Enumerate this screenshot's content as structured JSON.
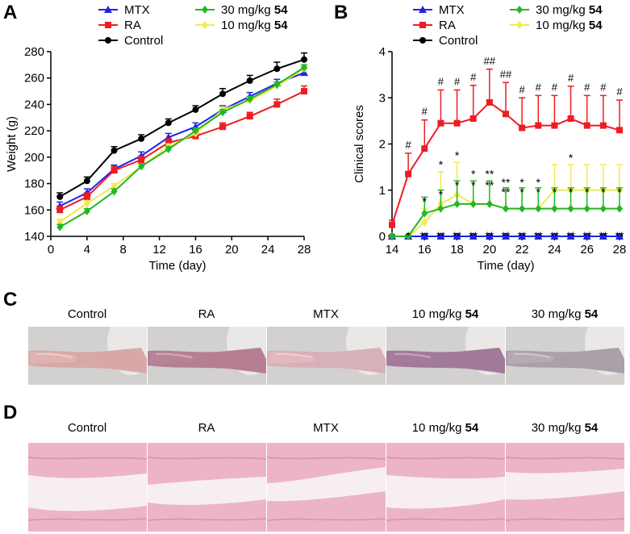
{
  "panels": {
    "A": "A",
    "B": "B",
    "C": "C",
    "D": "D"
  },
  "colors": {
    "mtx": "#1f23e8",
    "ra": "#ee1c24",
    "control": "#000000",
    "d30": "#22b823",
    "d10": "#f2ea52"
  },
  "legend": {
    "mtx": "MTX",
    "ra": "RA",
    "control": "Control",
    "d30": "30 mg/kg",
    "d10": "10 mg/kg",
    "compound": "54"
  },
  "chart_data": [
    {
      "type": "line",
      "title": "",
      "xlabel": "Time (day)",
      "ylabel": "Weight (g)",
      "xlim": [
        0,
        28
      ],
      "ylim": [
        140,
        280
      ],
      "xticks": [
        0,
        4,
        8,
        12,
        16,
        20,
        24,
        28
      ],
      "yticks": [
        140,
        160,
        180,
        200,
        220,
        240,
        260,
        280
      ],
      "x": [
        1,
        4,
        7,
        10,
        13,
        16,
        19,
        22,
        25,
        28
      ],
      "series": [
        {
          "name": "Control",
          "key": "control",
          "marker": "circle",
          "values": [
            170,
            182,
            205,
            214,
            226,
            236,
            248,
            258,
            267,
            274
          ],
          "errors": [
            3,
            3,
            3,
            3,
            3,
            3,
            4,
            4,
            5,
            5
          ]
        },
        {
          "name": "MTX",
          "key": "mtx",
          "marker": "triangle",
          "values": [
            163,
            173,
            191,
            201,
            215,
            223,
            236,
            246,
            256,
            264
          ],
          "errors": [
            3,
            3,
            3,
            3,
            3,
            3,
            3,
            3,
            3,
            3
          ]
        },
        {
          "name": "RA",
          "key": "ra",
          "marker": "square",
          "values": [
            160,
            170,
            190,
            198,
            211,
            216,
            223,
            231,
            240,
            250
          ],
          "errors": [
            3,
            3,
            3,
            3,
            3,
            3,
            3,
            3,
            4,
            4
          ]
        },
        {
          "name": "10 mg/kg 54",
          "key": "d10",
          "marker": "diamond",
          "values": [
            151,
            165,
            178,
            193,
            208,
            218,
            236,
            243,
            254,
            267
          ],
          "errors": [
            2,
            2,
            2,
            2,
            2,
            2,
            2,
            2,
            2,
            2
          ]
        },
        {
          "name": "30 mg/kg 54",
          "key": "d30",
          "marker": "diamond",
          "values": [
            147,
            159,
            174,
            193,
            206,
            220,
            234,
            244,
            255,
            268
          ],
          "errors": [
            2,
            2,
            2,
            2,
            2,
            2,
            2,
            2,
            2,
            2
          ]
        }
      ]
    },
    {
      "type": "line",
      "title": "",
      "xlabel": "Time (day)",
      "ylabel": "Clinical scores",
      "xlim": [
        14,
        28
      ],
      "ylim": [
        0,
        4
      ],
      "xticks": [
        14,
        16,
        18,
        20,
        22,
        24,
        26,
        28
      ],
      "yticks": [
        0,
        1,
        2,
        3,
        4
      ],
      "x": [
        14,
        15,
        16,
        17,
        18,
        19,
        20,
        21,
        22,
        23,
        24,
        25,
        26,
        27,
        28
      ],
      "series": [
        {
          "name": "Control",
          "key": "control",
          "marker": "circle",
          "values": [
            0,
            0,
            0,
            0,
            0,
            0,
            0,
            0,
            0,
            0,
            0,
            0,
            0,
            0,
            0
          ],
          "errors": [
            0,
            0,
            0,
            0,
            0,
            0,
            0,
            0,
            0,
            0,
            0,
            0,
            0,
            0,
            0
          ]
        },
        {
          "name": "MTX",
          "key": "mtx",
          "marker": "triangle",
          "values": [
            0,
            0,
            0,
            0,
            0,
            0,
            0,
            0,
            0,
            0,
            0,
            0,
            0,
            0,
            0
          ],
          "errors": [
            0,
            0,
            0,
            0,
            0,
            0,
            0,
            0,
            0,
            0,
            0,
            0,
            0,
            0,
            0
          ]
        },
        {
          "name": "10 mg/kg 54",
          "key": "d10",
          "marker": "diamond",
          "values": [
            0,
            0,
            0.3,
            0.7,
            0.9,
            0.7,
            0.7,
            0.6,
            0.6,
            0.6,
            1.0,
            1.0,
            1.0,
            1.0,
            1.0
          ],
          "errors": [
            0,
            0,
            0.3,
            0.7,
            0.7,
            0.5,
            0.5,
            0.45,
            0.45,
            0.45,
            0.55,
            0.55,
            0.55,
            0.55,
            0.55
          ]
        },
        {
          "name": "30 mg/kg 54",
          "key": "d30",
          "marker": "diamond",
          "values": [
            0,
            0,
            0.5,
            0.6,
            0.7,
            0.7,
            0.7,
            0.6,
            0.6,
            0.6,
            0.6,
            0.6,
            0.6,
            0.6,
            0.6
          ],
          "errors": [
            0,
            0,
            0.35,
            0.4,
            0.5,
            0.5,
            0.5,
            0.45,
            0.45,
            0.45,
            0.45,
            0.45,
            0.45,
            0.45,
            0.45
          ]
        },
        {
          "name": "RA",
          "key": "ra",
          "marker": "square",
          "values": [
            0.25,
            1.35,
            1.9,
            2.45,
            2.45,
            2.55,
            2.9,
            2.65,
            2.35,
            2.4,
            2.4,
            2.55,
            2.4,
            2.4,
            2.3
          ],
          "errors": [
            0.1,
            0.45,
            0.62,
            0.72,
            0.72,
            0.72,
            0.72,
            0.68,
            0.65,
            0.65,
            0.65,
            0.7,
            0.65,
            0.65,
            0.65
          ]
        }
      ],
      "annotations": {
        "ra_marks": [
          "#",
          "#",
          "#",
          "#",
          "#",
          "##",
          "##",
          "#",
          "#",
          "#",
          "#",
          "#",
          "#",
          "#"
        ],
        "ra_marks_x": [
          15,
          16,
          17,
          18,
          19,
          20,
          21,
          22,
          23,
          24,
          25,
          26,
          27,
          28
        ],
        "d10_marks": [
          {
            "x": 16,
            "lines": [
              "*"
            ]
          },
          {
            "x": 17,
            "lines": [
              "*"
            ]
          },
          {
            "x": 18,
            "lines": [
              "*"
            ]
          },
          {
            "x": 19,
            "lines": [
              "*"
            ]
          },
          {
            "x": 20,
            "lines": [
              "**"
            ]
          },
          {
            "x": 25,
            "lines": [
              "*"
            ]
          }
        ],
        "d30_marks": [
          {
            "x": 16,
            "lines": [
              "*"
            ]
          },
          {
            "x": 17,
            "lines": [
              "*"
            ]
          },
          {
            "x": 18,
            "lines": [
              "*"
            ]
          },
          {
            "x": 19,
            "lines": [
              "*"
            ]
          },
          {
            "x": 20,
            "lines": [
              "**"
            ]
          },
          {
            "x": 21,
            "lines": [
              "**",
              "**"
            ]
          },
          {
            "x": 22,
            "lines": [
              "*",
              "*"
            ]
          },
          {
            "x": 23,
            "lines": [
              "*",
              "*"
            ]
          },
          {
            "x": 24,
            "lines": [
              "*"
            ]
          },
          {
            "x": 25,
            "lines": [
              "*"
            ]
          },
          {
            "x": 26,
            "lines": [
              "*"
            ]
          },
          {
            "x": 27,
            "lines": [
              "*"
            ]
          },
          {
            "x": 28,
            "lines": [
              "*"
            ]
          }
        ],
        "base_marks": [
          {
            "x": 15,
            "text": "*"
          },
          {
            "x": 16,
            "text": "**"
          },
          {
            "x": 17,
            "text": "**"
          },
          {
            "x": 18,
            "text": "**"
          },
          {
            "x": 19,
            "text": "**"
          },
          {
            "x": 20,
            "text": "**"
          },
          {
            "x": 21,
            "text": "**"
          },
          {
            "x": 22,
            "text": "**"
          },
          {
            "x": 23,
            "text": "**"
          },
          {
            "x": 24,
            "text": "**"
          },
          {
            "x": 25,
            "text": "**"
          },
          {
            "x": 26,
            "text": "**"
          },
          {
            "x": 27,
            "text": "**"
          },
          {
            "x": 28,
            "text": "**"
          }
        ]
      }
    }
  ],
  "photos": {
    "labels": [
      "Control",
      "RA",
      "MTX",
      "10 mg/kg",
      "30 mg/kg"
    ],
    "compound": [
      "",
      "",
      "",
      "54",
      "54"
    ]
  },
  "histology": {
    "labels": [
      "Control",
      "RA",
      "MTX",
      "10 mg/kg",
      "30 mg/kg"
    ],
    "compound": [
      "",
      "",
      "",
      "54",
      "54"
    ]
  }
}
